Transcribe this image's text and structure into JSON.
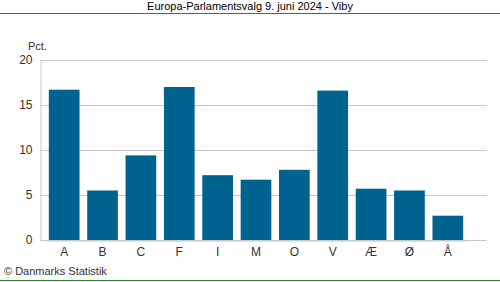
{
  "chart_data": {
    "type": "bar",
    "title": "Europa-Parlamentsvalg 9. juni 2024 - Viby",
    "ylabel": "Pct.",
    "annotations": [
      "© Danmarks Statistik"
    ],
    "categories": [
      "A",
      "B",
      "C",
      "F",
      "I",
      "M",
      "O",
      "V",
      "Æ",
      "Ø",
      "Å"
    ],
    "values": [
      16.7,
      5.5,
      9.4,
      17.0,
      7.2,
      6.7,
      7.8,
      16.6,
      5.7,
      5.5,
      2.7
    ],
    "color": "#00628f",
    "ylim": [
      0,
      20
    ],
    "yticks": [
      0,
      5,
      10,
      15,
      20
    ],
    "grid": true
  }
}
